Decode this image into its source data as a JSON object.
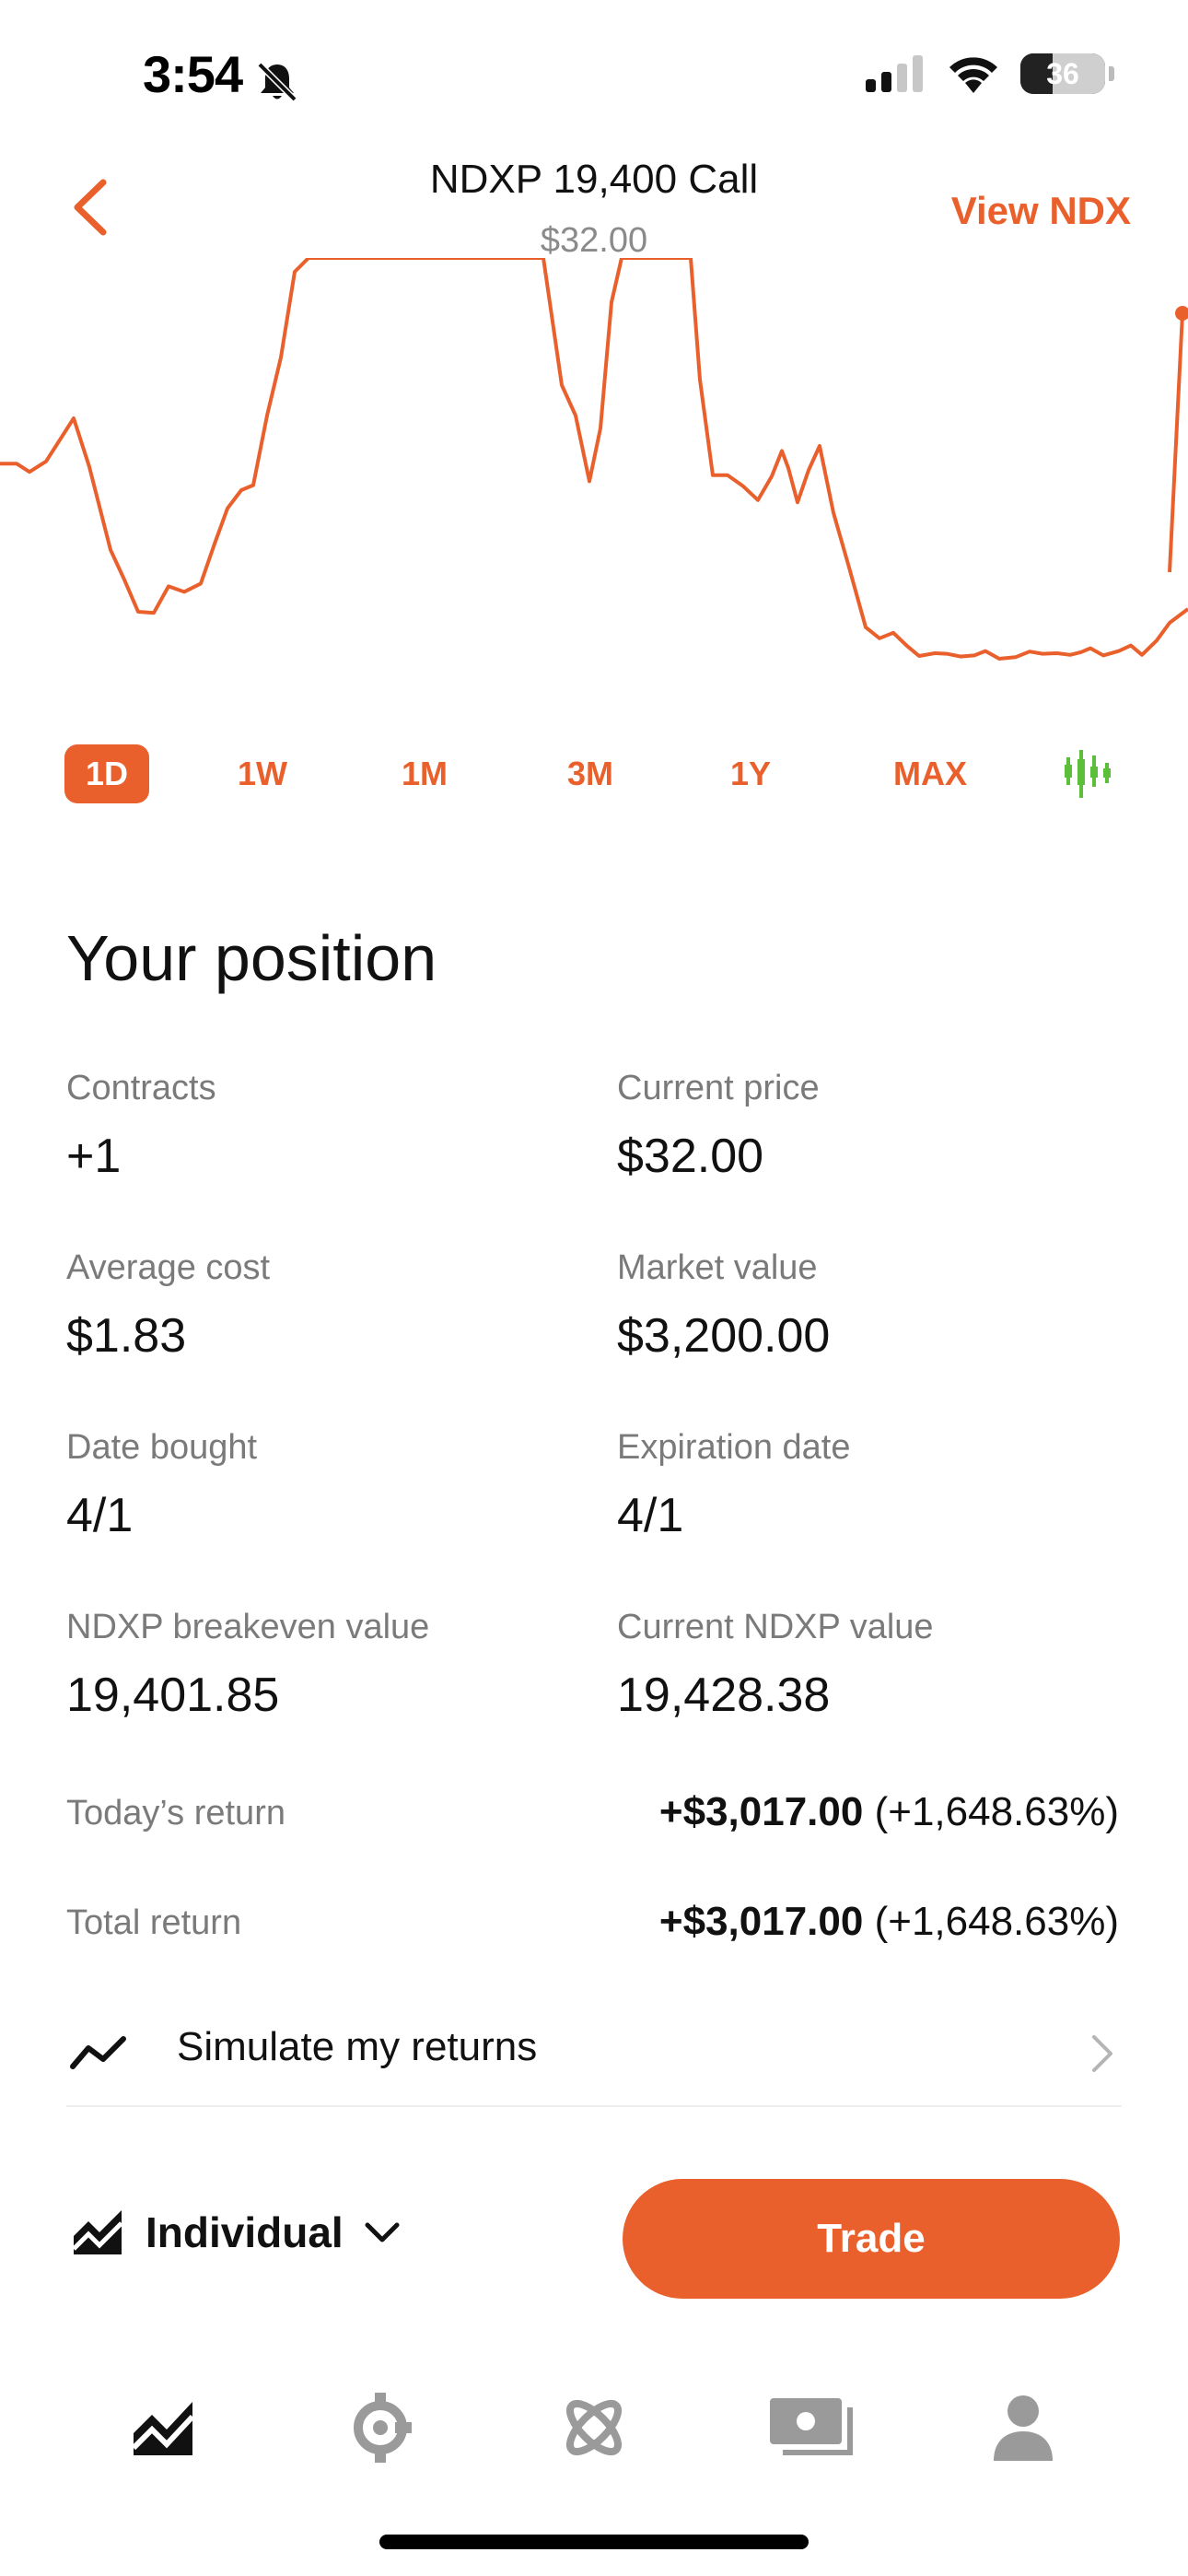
{
  "status_bar": {
    "time": "3:54",
    "battery": "36"
  },
  "header": {
    "title": "NDXP 19,400 Call",
    "price": "$32.00",
    "view_link": "View NDX"
  },
  "chart_data": {
    "type": "line",
    "color": "#e9602c",
    "note": "intraday price line, 1D",
    "points": [
      [
        0,
        372
      ],
      [
        18,
        372
      ],
      [
        32,
        387
      ],
      [
        50,
        368
      ],
      [
        80,
        290
      ],
      [
        97,
        378
      ],
      [
        120,
        528
      ],
      [
        135,
        582
      ],
      [
        150,
        640
      ],
      [
        167,
        642
      ],
      [
        183,
        594
      ],
      [
        200,
        604
      ],
      [
        218,
        589
      ],
      [
        233,
        517
      ],
      [
        247,
        453
      ],
      [
        262,
        420
      ],
      [
        275,
        411
      ],
      [
        290,
        285
      ],
      [
        305,
        180
      ],
      [
        320,
        25
      ],
      [
        335,
        0
      ],
      [
        350,
        0
      ],
      [
        365,
        0
      ],
      [
        380,
        0
      ],
      [
        395,
        0
      ],
      [
        410,
        0
      ],
      [
        425,
        0
      ],
      [
        440,
        0
      ],
      [
        455,
        0
      ],
      [
        470,
        0
      ],
      [
        485,
        0
      ],
      [
        500,
        0
      ],
      [
        515,
        0
      ],
      [
        530,
        0
      ],
      [
        545,
        0
      ],
      [
        560,
        0
      ],
      [
        575,
        0
      ],
      [
        590,
        0
      ],
      [
        610,
        230
      ],
      [
        625,
        285
      ],
      [
        640,
        404
      ],
      [
        652,
        308
      ],
      [
        664,
        80
      ],
      [
        675,
        0
      ],
      [
        690,
        0
      ],
      [
        705,
        0
      ],
      [
        720,
        0
      ],
      [
        735,
        0
      ],
      [
        750,
        0
      ],
      [
        760,
        220
      ],
      [
        774,
        393
      ],
      [
        790,
        393
      ],
      [
        807,
        413
      ],
      [
        823,
        438
      ],
      [
        838,
        395
      ],
      [
        849,
        349
      ],
      [
        856,
        380
      ],
      [
        866,
        442
      ],
      [
        878,
        384
      ],
      [
        890,
        340
      ],
      [
        905,
        461
      ],
      [
        922,
        560
      ],
      [
        940,
        668
      ],
      [
        955,
        688
      ],
      [
        970,
        678
      ],
      [
        985,
        702
      ],
      [
        998,
        720
      ],
      [
        1015,
        715
      ],
      [
        1028,
        716
      ],
      [
        1043,
        721
      ],
      [
        1058,
        719
      ],
      [
        1070,
        711
      ],
      [
        1085,
        725
      ],
      [
        1103,
        722
      ],
      [
        1118,
        712
      ],
      [
        1132,
        716
      ],
      [
        1148,
        715
      ],
      [
        1162,
        718
      ],
      [
        1174,
        713
      ],
      [
        1184,
        706
      ],
      [
        1198,
        719
      ],
      [
        1215,
        711
      ],
      [
        1228,
        701
      ],
      [
        1240,
        718
      ],
      [
        1256,
        692
      ],
      [
        1270,
        660
      ],
      [
        1290,
        635
      ]
    ],
    "end_marker": true
  },
  "ranges": [
    "1D",
    "1W",
    "1M",
    "3M",
    "1Y",
    "MAX"
  ],
  "position": {
    "heading": "Your position",
    "fields": [
      {
        "label": "Contracts",
        "value": "+1"
      },
      {
        "label": "Current price",
        "value": "$32.00"
      },
      {
        "label": "Average cost",
        "value": "$1.83"
      },
      {
        "label": "Market value",
        "value": "$3,200.00"
      },
      {
        "label": "Date bought",
        "value": "4/1"
      },
      {
        "label": "Expiration date",
        "value": "4/1"
      },
      {
        "label": "NDXP breakeven value",
        "value": "19,401.85"
      },
      {
        "label": "Current NDXP value",
        "value": "19,428.38"
      }
    ],
    "today_return": {
      "label": "Today’s return",
      "amount": "+$3,017.00",
      "percent": "(+1,648.63%)"
    },
    "total_return": {
      "label": "Total return",
      "amount": "+$3,017.00",
      "percent": "(+1,648.63%)"
    }
  },
  "simulate": {
    "label": "Simulate my returns"
  },
  "account": {
    "label": "Individual"
  },
  "trade_button": "Trade",
  "colors": {
    "accent": "#e9602c",
    "candle_green": "#5cbf3a"
  },
  "tabbar": [
    "chart-icon",
    "crypto-icon",
    "atom-icon",
    "cash-icon",
    "person-icon"
  ]
}
